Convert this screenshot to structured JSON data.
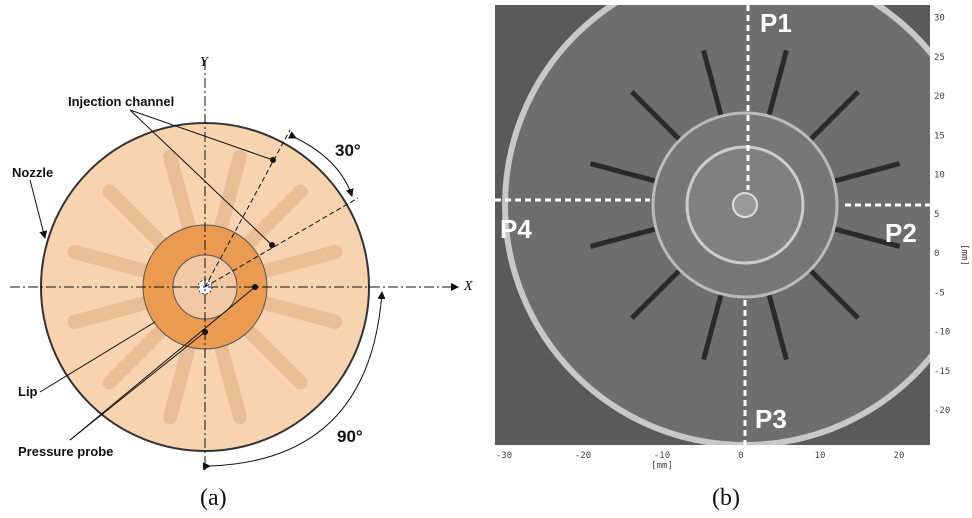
{
  "panel_a": {
    "axis_y": "Y",
    "axis_x": "X",
    "labels": {
      "injection": "Injection channel",
      "nozzle": "Nozzle",
      "angle_small": "30°",
      "angle_large": "90°",
      "lip": "Lip",
      "probe": "Pressure probe"
    },
    "caption": "(a)"
  },
  "panel_b": {
    "probes": [
      "P1",
      "P2",
      "P3",
      "P4"
    ],
    "x_ticks": [
      -30,
      -20,
      -10,
      0,
      10,
      20
    ],
    "x_unit": "[mm]",
    "y_ticks": [
      30,
      25,
      20,
      15,
      10,
      5,
      0,
      -5,
      -10,
      -15,
      -20
    ],
    "y_unit": "[mm]",
    "caption": "(b)"
  }
}
